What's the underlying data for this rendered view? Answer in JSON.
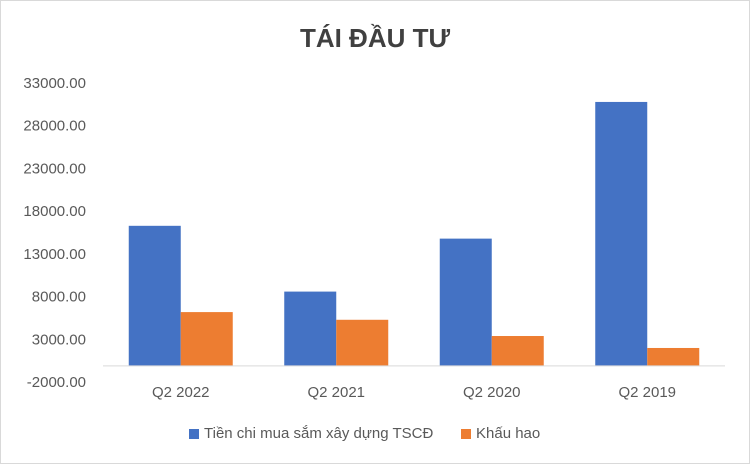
{
  "chart_data": {
    "type": "bar",
    "title": "TÁI ĐẦU TƯ",
    "categories": [
      "Q2 2022",
      "Q2 2021",
      "Q2 2020",
      "Q2 2019"
    ],
    "series": [
      {
        "name": "Tiền chi mua sắm xây dựng TSCĐ",
        "color": "#4472c4",
        "values": [
          16400,
          8700,
          14900,
          30900
        ]
      },
      {
        "name": "Khấu hao",
        "color": "#ed7d31",
        "values": [
          6300,
          5400,
          3500,
          2100
        ]
      }
    ],
    "ylim": [
      -2000,
      33000
    ],
    "yticks": [
      {
        "value": -2000,
        "label": "-2000.00"
      },
      {
        "value": 3000,
        "label": "3000.00"
      },
      {
        "value": 8000,
        "label": "8000.00"
      },
      {
        "value": 13000,
        "label": "13000.00"
      },
      {
        "value": 18000,
        "label": "18000.00"
      },
      {
        "value": 23000,
        "label": "23000.00"
      },
      {
        "value": 28000,
        "label": "28000.00"
      },
      {
        "value": 33000,
        "label": "33000.00"
      }
    ],
    "grid": false,
    "legend": "bottom"
  }
}
